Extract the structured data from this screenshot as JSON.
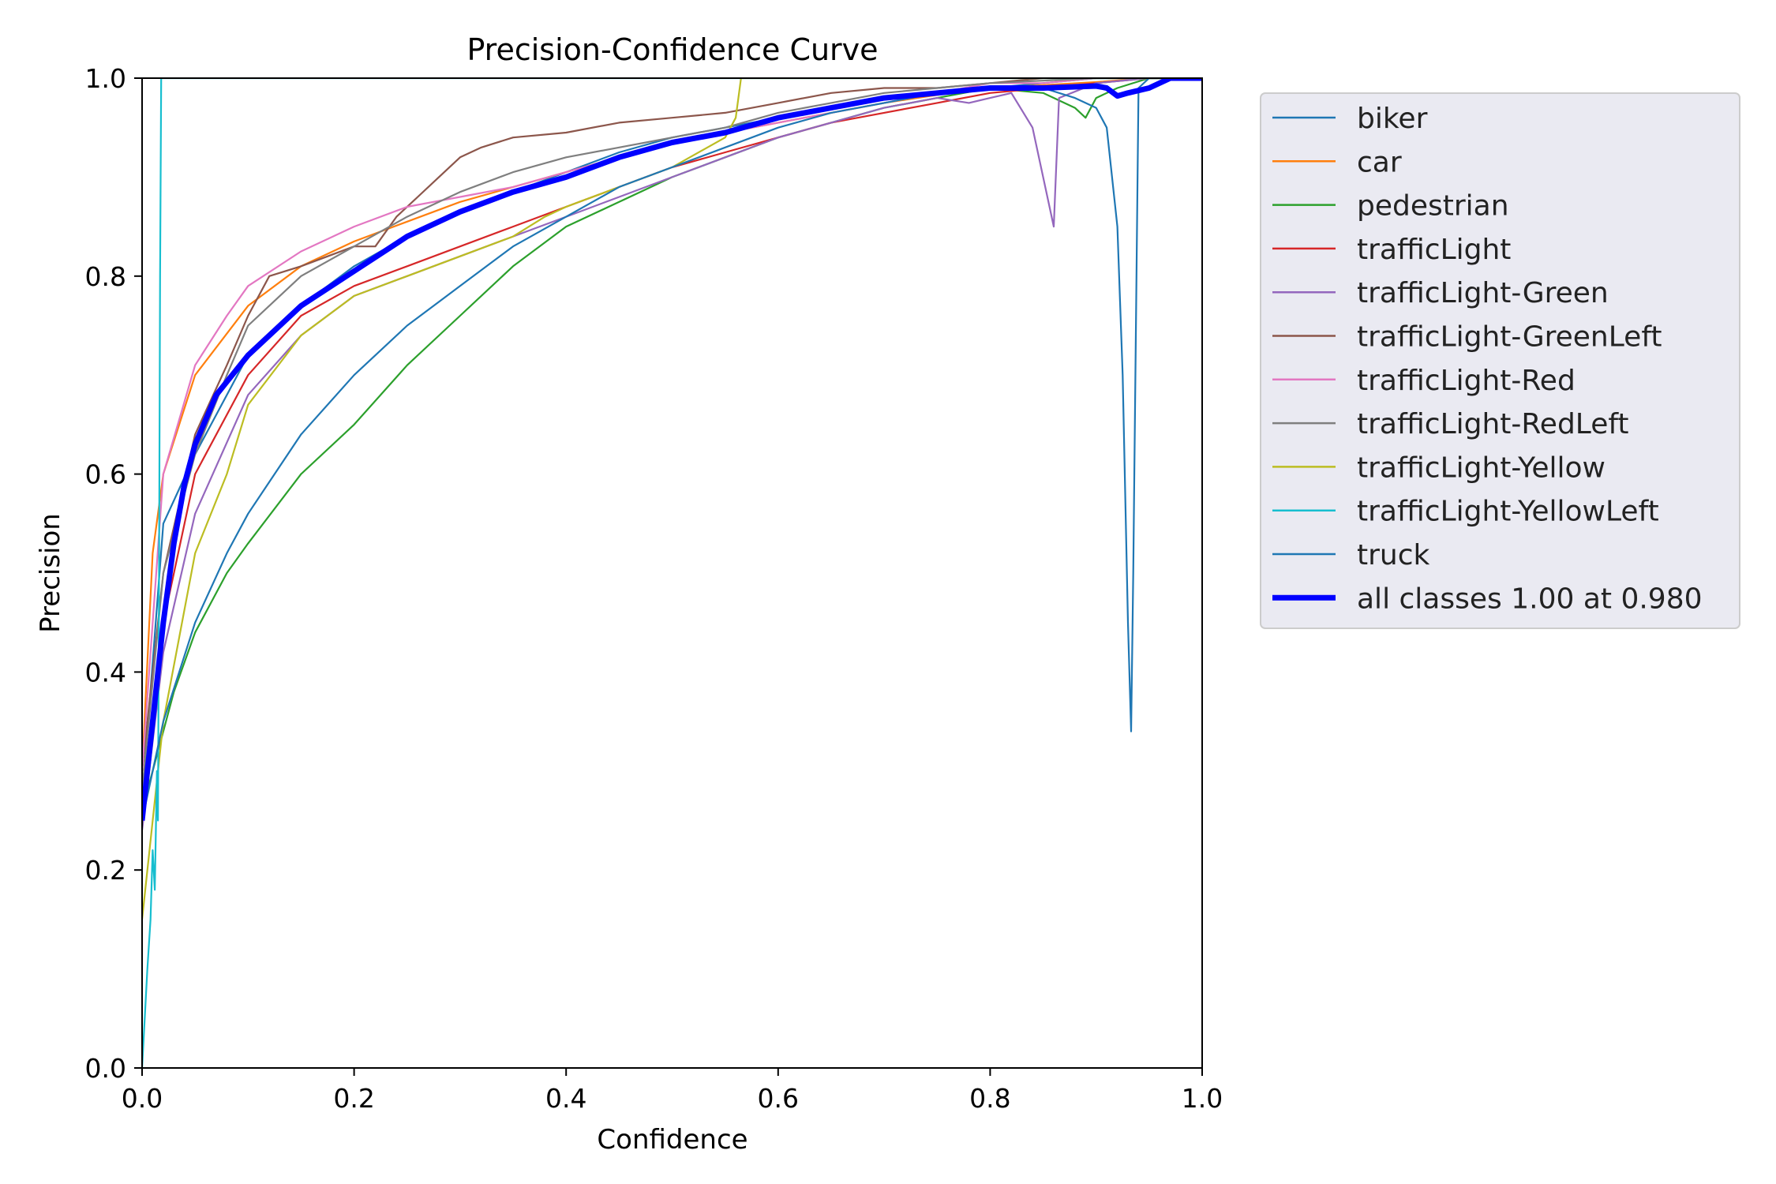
{
  "chart_data": {
    "type": "line",
    "title": "Precision-Confidence Curve",
    "xlabel": "Confidence",
    "ylabel": "Precision",
    "xlim": [
      0,
      1
    ],
    "ylim": [
      0,
      1
    ],
    "xticks": [
      "0.0",
      "0.2",
      "0.4",
      "0.6",
      "0.8",
      "1.0"
    ],
    "yticks": [
      "0.0",
      "0.2",
      "0.4",
      "0.6",
      "0.8",
      "1.0"
    ],
    "grid": false,
    "legend_position": "outside-top-right",
    "series": [
      {
        "name": "biker",
        "color": "#1f77b4",
        "points": [
          [
            0,
            0.27
          ],
          [
            0.02,
            0.55
          ],
          [
            0.05,
            0.62
          ],
          [
            0.1,
            0.72
          ],
          [
            0.15,
            0.77
          ],
          [
            0.2,
            0.81
          ],
          [
            0.25,
            0.84
          ],
          [
            0.3,
            0.865
          ],
          [
            0.35,
            0.885
          ],
          [
            0.4,
            0.905
          ],
          [
            0.45,
            0.925
          ],
          [
            0.5,
            0.94
          ],
          [
            0.55,
            0.95
          ],
          [
            0.6,
            0.96
          ],
          [
            0.65,
            0.97
          ],
          [
            0.7,
            0.98
          ],
          [
            0.75,
            0.985
          ],
          [
            0.8,
            0.99
          ],
          [
            0.85,
            0.995
          ],
          [
            0.9,
            1.0
          ],
          [
            1.0,
            1.0
          ]
        ]
      },
      {
        "name": "car",
        "color": "#ff7f0e",
        "points": [
          [
            0,
            0.3
          ],
          [
            0.01,
            0.52
          ],
          [
            0.02,
            0.6
          ],
          [
            0.05,
            0.7
          ],
          [
            0.1,
            0.77
          ],
          [
            0.15,
            0.81
          ],
          [
            0.2,
            0.835
          ],
          [
            0.25,
            0.855
          ],
          [
            0.3,
            0.875
          ],
          [
            0.35,
            0.89
          ],
          [
            0.4,
            0.905
          ],
          [
            0.45,
            0.92
          ],
          [
            0.5,
            0.935
          ],
          [
            0.55,
            0.945
          ],
          [
            0.6,
            0.955
          ],
          [
            0.65,
            0.965
          ],
          [
            0.7,
            0.975
          ],
          [
            0.75,
            0.983
          ],
          [
            0.8,
            0.99
          ],
          [
            0.85,
            0.993
          ],
          [
            0.9,
            0.996
          ],
          [
            0.95,
            1.0
          ],
          [
            1.0,
            1.0
          ]
        ]
      },
      {
        "name": "pedestrian",
        "color": "#2ca02c",
        "points": [
          [
            0,
            0.26
          ],
          [
            0.01,
            0.3
          ],
          [
            0.03,
            0.38
          ],
          [
            0.05,
            0.44
          ],
          [
            0.08,
            0.5
          ],
          [
            0.1,
            0.53
          ],
          [
            0.15,
            0.6
          ],
          [
            0.2,
            0.65
          ],
          [
            0.25,
            0.71
          ],
          [
            0.3,
            0.76
          ],
          [
            0.35,
            0.81
          ],
          [
            0.4,
            0.85
          ],
          [
            0.45,
            0.875
          ],
          [
            0.5,
            0.9
          ],
          [
            0.55,
            0.92
          ],
          [
            0.6,
            0.94
          ],
          [
            0.65,
            0.955
          ],
          [
            0.7,
            0.97
          ],
          [
            0.75,
            0.98
          ],
          [
            0.8,
            0.99
          ],
          [
            0.85,
            0.985
          ],
          [
            0.88,
            0.97
          ],
          [
            0.89,
            0.96
          ],
          [
            0.9,
            0.98
          ],
          [
            0.92,
            0.99
          ],
          [
            0.95,
            1.0
          ],
          [
            1.0,
            1.0
          ]
        ]
      },
      {
        "name": "trafficLight",
        "color": "#d62728",
        "points": [
          [
            0,
            0.27
          ],
          [
            0.02,
            0.45
          ],
          [
            0.05,
            0.6
          ],
          [
            0.1,
            0.7
          ],
          [
            0.15,
            0.76
          ],
          [
            0.2,
            0.79
          ],
          [
            0.25,
            0.81
          ],
          [
            0.3,
            0.83
          ],
          [
            0.35,
            0.85
          ],
          [
            0.4,
            0.87
          ],
          [
            0.45,
            0.89
          ],
          [
            0.5,
            0.91
          ],
          [
            0.55,
            0.925
          ],
          [
            0.6,
            0.94
          ],
          [
            0.65,
            0.955
          ],
          [
            0.7,
            0.965
          ],
          [
            0.75,
            0.975
          ],
          [
            0.8,
            0.985
          ],
          [
            0.85,
            0.99
          ],
          [
            0.9,
            0.995
          ],
          [
            0.95,
            1.0
          ],
          [
            1.0,
            1.0
          ]
        ]
      },
      {
        "name": "trafficLight-Green",
        "color": "#9467bd",
        "points": [
          [
            0,
            0.24
          ],
          [
            0.02,
            0.42
          ],
          [
            0.05,
            0.56
          ],
          [
            0.1,
            0.68
          ],
          [
            0.15,
            0.74
          ],
          [
            0.2,
            0.78
          ],
          [
            0.25,
            0.8
          ],
          [
            0.3,
            0.82
          ],
          [
            0.35,
            0.84
          ],
          [
            0.4,
            0.86
          ],
          [
            0.45,
            0.88
          ],
          [
            0.5,
            0.9
          ],
          [
            0.55,
            0.92
          ],
          [
            0.6,
            0.94
          ],
          [
            0.65,
            0.955
          ],
          [
            0.7,
            0.97
          ],
          [
            0.75,
            0.98
          ],
          [
            0.78,
            0.975
          ],
          [
            0.8,
            0.98
          ],
          [
            0.82,
            0.985
          ],
          [
            0.84,
            0.95
          ],
          [
            0.86,
            0.85
          ],
          [
            0.865,
            0.98
          ],
          [
            0.9,
            0.995
          ],
          [
            0.95,
            1.0
          ],
          [
            1.0,
            1.0
          ]
        ]
      },
      {
        "name": "trafficLight-GreenLeft",
        "color": "#8c564b",
        "points": [
          [
            0,
            0.3
          ],
          [
            0.02,
            0.5
          ],
          [
            0.05,
            0.64
          ],
          [
            0.08,
            0.71
          ],
          [
            0.1,
            0.76
          ],
          [
            0.12,
            0.8
          ],
          [
            0.15,
            0.81
          ],
          [
            0.2,
            0.83
          ],
          [
            0.22,
            0.83
          ],
          [
            0.24,
            0.86
          ],
          [
            0.26,
            0.88
          ],
          [
            0.28,
            0.9
          ],
          [
            0.3,
            0.92
          ],
          [
            0.32,
            0.93
          ],
          [
            0.35,
            0.94
          ],
          [
            0.4,
            0.945
          ],
          [
            0.45,
            0.955
          ],
          [
            0.5,
            0.96
          ],
          [
            0.55,
            0.965
          ],
          [
            0.6,
            0.975
          ],
          [
            0.65,
            0.985
          ],
          [
            0.7,
            0.99
          ],
          [
            0.75,
            0.99
          ],
          [
            0.8,
            0.995
          ],
          [
            0.85,
            1.0
          ],
          [
            1.0,
            1.0
          ]
        ]
      },
      {
        "name": "trafficLight-Red",
        "color": "#e377c2",
        "points": [
          [
            0,
            0.3
          ],
          [
            0.02,
            0.6
          ],
          [
            0.05,
            0.71
          ],
          [
            0.08,
            0.76
          ],
          [
            0.1,
            0.79
          ],
          [
            0.15,
            0.825
          ],
          [
            0.2,
            0.85
          ],
          [
            0.25,
            0.87
          ],
          [
            0.3,
            0.88
          ],
          [
            0.35,
            0.89
          ],
          [
            0.4,
            0.905
          ],
          [
            0.45,
            0.92
          ],
          [
            0.5,
            0.935
          ],
          [
            0.55,
            0.945
          ],
          [
            0.6,
            0.955
          ],
          [
            0.65,
            0.965
          ],
          [
            0.7,
            0.975
          ],
          [
            0.75,
            0.985
          ],
          [
            0.8,
            0.995
          ],
          [
            0.85,
            0.995
          ],
          [
            0.9,
            1.0
          ],
          [
            1.0,
            1.0
          ]
        ]
      },
      {
        "name": "trafficLight-RedLeft",
        "color": "#7f7f7f",
        "points": [
          [
            0,
            0.28
          ],
          [
            0.02,
            0.5
          ],
          [
            0.05,
            0.62
          ],
          [
            0.08,
            0.7
          ],
          [
            0.1,
            0.75
          ],
          [
            0.15,
            0.8
          ],
          [
            0.2,
            0.83
          ],
          [
            0.25,
            0.86
          ],
          [
            0.3,
            0.885
          ],
          [
            0.35,
            0.905
          ],
          [
            0.4,
            0.92
          ],
          [
            0.45,
            0.93
          ],
          [
            0.5,
            0.94
          ],
          [
            0.55,
            0.95
          ],
          [
            0.6,
            0.965
          ],
          [
            0.65,
            0.975
          ],
          [
            0.7,
            0.985
          ],
          [
            0.75,
            0.99
          ],
          [
            0.8,
            0.995
          ],
          [
            0.9,
            1.0
          ],
          [
            1.0,
            1.0
          ]
        ]
      },
      {
        "name": "trafficLight-Yellow",
        "color": "#bcbd22",
        "points": [
          [
            0,
            0.15
          ],
          [
            0.02,
            0.35
          ],
          [
            0.05,
            0.52
          ],
          [
            0.08,
            0.6
          ],
          [
            0.1,
            0.67
          ],
          [
            0.15,
            0.74
          ],
          [
            0.2,
            0.78
          ],
          [
            0.25,
            0.8
          ],
          [
            0.3,
            0.82
          ],
          [
            0.35,
            0.84
          ],
          [
            0.38,
            0.86
          ],
          [
            0.4,
            0.87
          ],
          [
            0.45,
            0.89
          ],
          [
            0.5,
            0.91
          ],
          [
            0.55,
            0.94
          ],
          [
            0.56,
            0.96
          ],
          [
            0.565,
            1.0
          ],
          [
            1.0,
            1.0
          ]
        ]
      },
      {
        "name": "trafficLight-YellowLeft",
        "color": "#17becf",
        "points": [
          [
            0,
            0.0
          ],
          [
            0.005,
            0.1
          ],
          [
            0.008,
            0.15
          ],
          [
            0.01,
            0.22
          ],
          [
            0.012,
            0.18
          ],
          [
            0.014,
            0.3
          ],
          [
            0.015,
            0.25
          ],
          [
            0.016,
            0.5
          ],
          [
            0.017,
            0.8
          ],
          [
            0.018,
            1.0
          ],
          [
            1.0,
            1.0
          ]
        ]
      },
      {
        "name": "truck",
        "color": "#1f77b4",
        "points": [
          [
            0,
            0.25
          ],
          [
            0.02,
            0.35
          ],
          [
            0.05,
            0.45
          ],
          [
            0.08,
            0.52
          ],
          [
            0.1,
            0.56
          ],
          [
            0.15,
            0.64
          ],
          [
            0.2,
            0.7
          ],
          [
            0.25,
            0.75
          ],
          [
            0.3,
            0.79
          ],
          [
            0.35,
            0.83
          ],
          [
            0.4,
            0.86
          ],
          [
            0.45,
            0.89
          ],
          [
            0.5,
            0.91
          ],
          [
            0.55,
            0.93
          ],
          [
            0.6,
            0.95
          ],
          [
            0.65,
            0.965
          ],
          [
            0.7,
            0.975
          ],
          [
            0.75,
            0.985
          ],
          [
            0.8,
            0.99
          ],
          [
            0.85,
            0.99
          ],
          [
            0.88,
            0.98
          ],
          [
            0.9,
            0.97
          ],
          [
            0.91,
            0.95
          ],
          [
            0.92,
            0.85
          ],
          [
            0.925,
            0.7
          ],
          [
            0.93,
            0.45
          ],
          [
            0.933,
            0.34
          ],
          [
            0.935,
            0.5
          ],
          [
            0.94,
            0.99
          ],
          [
            0.95,
            1.0
          ],
          [
            1.0,
            1.0
          ]
        ]
      },
      {
        "name": "all classes 1.00 at 0.980",
        "color": "#0000ff",
        "width": 7,
        "points": [
          [
            0,
            0.25
          ],
          [
            0.01,
            0.35
          ],
          [
            0.02,
            0.45
          ],
          [
            0.03,
            0.53
          ],
          [
            0.04,
            0.59
          ],
          [
            0.05,
            0.63
          ],
          [
            0.07,
            0.68
          ],
          [
            0.1,
            0.72
          ],
          [
            0.15,
            0.77
          ],
          [
            0.2,
            0.805
          ],
          [
            0.25,
            0.84
          ],
          [
            0.3,
            0.865
          ],
          [
            0.35,
            0.885
          ],
          [
            0.4,
            0.9
          ],
          [
            0.45,
            0.92
          ],
          [
            0.5,
            0.935
          ],
          [
            0.55,
            0.945
          ],
          [
            0.6,
            0.96
          ],
          [
            0.65,
            0.97
          ],
          [
            0.7,
            0.98
          ],
          [
            0.75,
            0.985
          ],
          [
            0.8,
            0.99
          ],
          [
            0.85,
            0.99
          ],
          [
            0.9,
            0.992
          ],
          [
            0.91,
            0.99
          ],
          [
            0.92,
            0.982
          ],
          [
            0.93,
            0.985
          ],
          [
            0.95,
            0.99
          ],
          [
            0.97,
            1.0
          ],
          [
            0.98,
            1.0
          ],
          [
            1.0,
            1.0
          ]
        ]
      }
    ]
  }
}
